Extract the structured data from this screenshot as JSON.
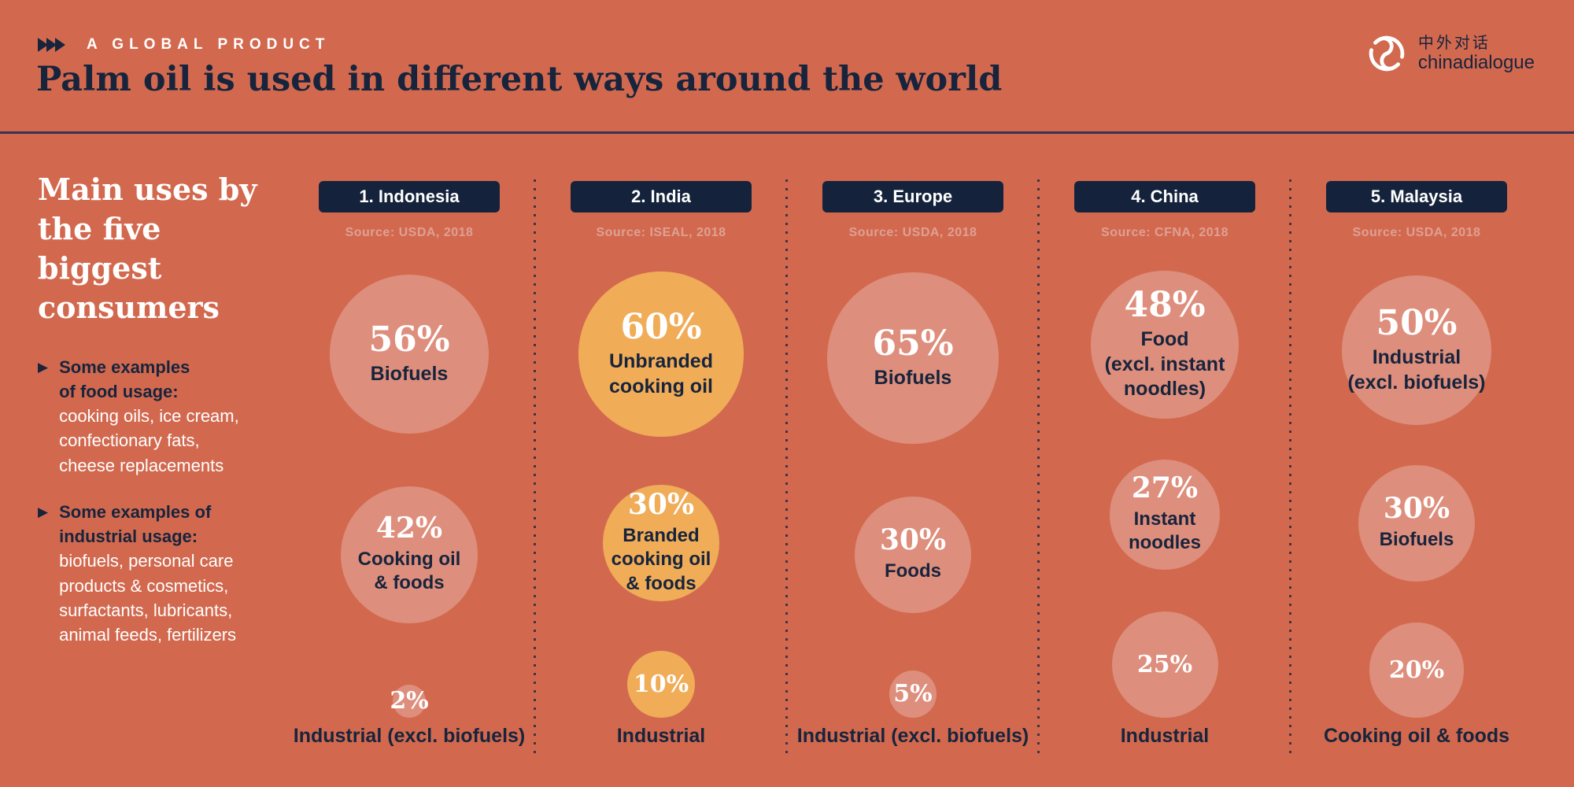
{
  "header": {
    "eyebrow": "A GLOBAL PRODUCT",
    "title": "Palm oil is used in different ways around the world",
    "logo_cn": "中外对话",
    "logo_en": "chinadialogue"
  },
  "sidebar": {
    "heading": "Main uses by\nthe five biggest\nconsumers",
    "bullets": [
      {
        "bold": "Some examples\nof food usage:",
        "text": "cooking oils, ice cream,\nconfectionary fats,\ncheese replacements"
      },
      {
        "bold": "Some examples of\nindustrial usage:",
        "text": "biofuels, personal care\nproducts & cosmetics,\nsurfactants, lubricants,\nanimal feeds, fertilizers"
      }
    ]
  },
  "columns": [
    {
      "rank_label": "1. Indonesia",
      "source": "Source: USDA, 2018",
      "highlight": false,
      "bubbles": [
        {
          "value": 56,
          "text": "56%",
          "label": "Biofuels"
        },
        {
          "value": 42,
          "text": "42%",
          "label": "Cooking oil\n& foods"
        },
        {
          "value": 2,
          "text": "2%",
          "label": ""
        }
      ],
      "footer_label": "Industrial (excl. biofuels)"
    },
    {
      "rank_label": "2. India",
      "source": "Source: ISEAL, 2018",
      "highlight": true,
      "bubbles": [
        {
          "value": 60,
          "text": "60%",
          "label": "Unbranded\ncooking oil"
        },
        {
          "value": 30,
          "text": "30%",
          "label": "Branded\ncooking oil\n& foods"
        },
        {
          "value": 10,
          "text": "10%",
          "label": ""
        }
      ],
      "footer_label": "Industrial"
    },
    {
      "rank_label": "3. Europe",
      "source": "Source: USDA, 2018",
      "highlight": false,
      "bubbles": [
        {
          "value": 65,
          "text": "65%",
          "label": "Biofuels"
        },
        {
          "value": 30,
          "text": "30%",
          "label": "Foods"
        },
        {
          "value": 5,
          "text": "5%",
          "label": ""
        }
      ],
      "footer_label": "Industrial (excl. biofuels)"
    },
    {
      "rank_label": "4. China",
      "source": "Source: CFNA, 2018",
      "highlight": false,
      "bubbles": [
        {
          "value": 48,
          "text": "48%",
          "label": "Food\n(excl. instant\nnoodles)"
        },
        {
          "value": 27,
          "text": "27%",
          "label": "Instant\nnoodles"
        },
        {
          "value": 25,
          "text": "25%",
          "label": ""
        }
      ],
      "footer_label": "Industrial"
    },
    {
      "rank_label": "5. Malaysia",
      "source": "Source: USDA, 2018",
      "highlight": false,
      "bubbles": [
        {
          "value": 50,
          "text": "50%",
          "label": "Industrial\n(excl. biofuels)"
        },
        {
          "value": 30,
          "text": "30%",
          "label": "Biofuels"
        },
        {
          "value": 20,
          "text": "20%",
          "label": ""
        }
      ],
      "footer_label": "Cooking oil & foods"
    }
  ],
  "colors": {
    "background": "#D2694F",
    "bubble": "#DE8E7C",
    "bubble_highlight": "#F0AC57",
    "badge_navy": "#14233B",
    "text_navy": "#17243C",
    "source_text": "#DFA093",
    "rule": "#3B3150",
    "white": "#FFFFFF"
  },
  "chart_data": {
    "type": "table",
    "encoding": "proportional-area-bubbles",
    "title": "Palm oil is used in different ways around the world",
    "subtitle": "Main uses by the five biggest consumers",
    "unit": "percent",
    "categories": [
      "Indonesia",
      "India",
      "Europe",
      "China",
      "Malaysia"
    ],
    "series": [
      {
        "rank": 1,
        "country": "Indonesia",
        "source": "USDA, 2018",
        "uses": [
          {
            "use": "Biofuels",
            "pct": 56
          },
          {
            "use": "Cooking oil & foods",
            "pct": 42
          },
          {
            "use": "Industrial (excl. biofuels)",
            "pct": 2
          }
        ]
      },
      {
        "rank": 2,
        "country": "India",
        "source": "ISEAL, 2018",
        "uses": [
          {
            "use": "Unbranded cooking oil",
            "pct": 60
          },
          {
            "use": "Branded cooking oil & foods",
            "pct": 30
          },
          {
            "use": "Industrial",
            "pct": 10
          }
        ]
      },
      {
        "rank": 3,
        "country": "Europe",
        "source": "USDA, 2018",
        "uses": [
          {
            "use": "Biofuels",
            "pct": 65
          },
          {
            "use": "Foods",
            "pct": 30
          },
          {
            "use": "Industrial (excl. biofuels)",
            "pct": 5
          }
        ]
      },
      {
        "rank": 4,
        "country": "China",
        "source": "CFNA, 2018",
        "uses": [
          {
            "use": "Food (excl. instant noodles)",
            "pct": 48
          },
          {
            "use": "Instant noodles",
            "pct": 27
          },
          {
            "use": "Industrial",
            "pct": 25
          }
        ]
      },
      {
        "rank": 5,
        "country": "Malaysia",
        "source": "USDA, 2018",
        "uses": [
          {
            "use": "Industrial (excl. biofuels)",
            "pct": 50
          },
          {
            "use": "Biofuels",
            "pct": 30
          },
          {
            "use": "Cooking oil & foods",
            "pct": 20
          }
        ]
      }
    ]
  }
}
